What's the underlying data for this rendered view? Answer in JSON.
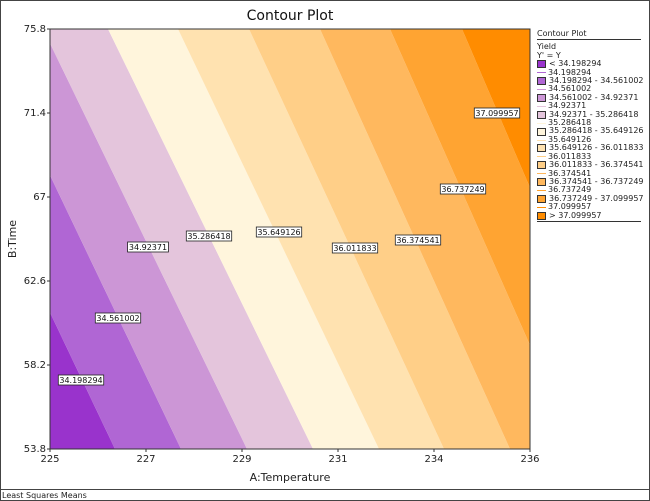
{
  "chart_data": {
    "type": "contour",
    "title": "Contour Plot",
    "xlabel": "A:Temperature",
    "ylabel": "B:Time",
    "x_ticks": [
      "225",
      "227",
      "229",
      "231",
      "234",
      "236"
    ],
    "y_ticks": [
      "75.8",
      "71.4",
      "67",
      "62.6",
      "58.2",
      "53.8"
    ],
    "xlim": [
      225,
      236
    ],
    "ylim": [
      53.8,
      75.8
    ],
    "contour_levels": [
      "34.198294",
      "34.561002",
      "34.92371",
      "35.286418",
      "35.649126",
      "36.011833",
      "36.374541",
      "36.737249",
      "37.099957"
    ],
    "band_colors": [
      "#9933cc",
      "#b066d4",
      "#cc96d6",
      "#e4c5dc",
      "#fff5dc",
      "#ffe2b0",
      "#ffcf88",
      "#ffb85e",
      "#ffa432",
      "#ff8c00"
    ],
    "legend": {
      "title": "Contour Plot",
      "response": "Yield",
      "transform": "Y' = Y",
      "entries": [
        {
          "kind": "band",
          "label": "< 34.198294"
        },
        {
          "kind": "line",
          "label": "34.198294"
        },
        {
          "kind": "band",
          "label": "34.198294 - 34.561002"
        },
        {
          "kind": "line",
          "label": "34.561002"
        },
        {
          "kind": "band",
          "label": "34.561002 - 34.92371"
        },
        {
          "kind": "line",
          "label": "34.92371"
        },
        {
          "kind": "band",
          "label": "34.92371 - 35.286418"
        },
        {
          "kind": "line",
          "label": "35.286418"
        },
        {
          "kind": "band",
          "label": "35.286418 - 35.649126"
        },
        {
          "kind": "line",
          "label": "35.649126"
        },
        {
          "kind": "band",
          "label": "35.649126 - 36.011833"
        },
        {
          "kind": "line",
          "label": "36.011833"
        },
        {
          "kind": "band",
          "label": "36.011833 - 36.374541"
        },
        {
          "kind": "line",
          "label": "36.374541"
        },
        {
          "kind": "band",
          "label": "36.374541 - 36.737249"
        },
        {
          "kind": "line",
          "label": "36.737249"
        },
        {
          "kind": "band",
          "label": "36.737249 - 37.099957"
        },
        {
          "kind": "line",
          "label": "37.099957"
        },
        {
          "kind": "band",
          "label": "> 37.099957"
        }
      ],
      "placement": "right"
    }
  },
  "status_bar": "Least Squares Means"
}
